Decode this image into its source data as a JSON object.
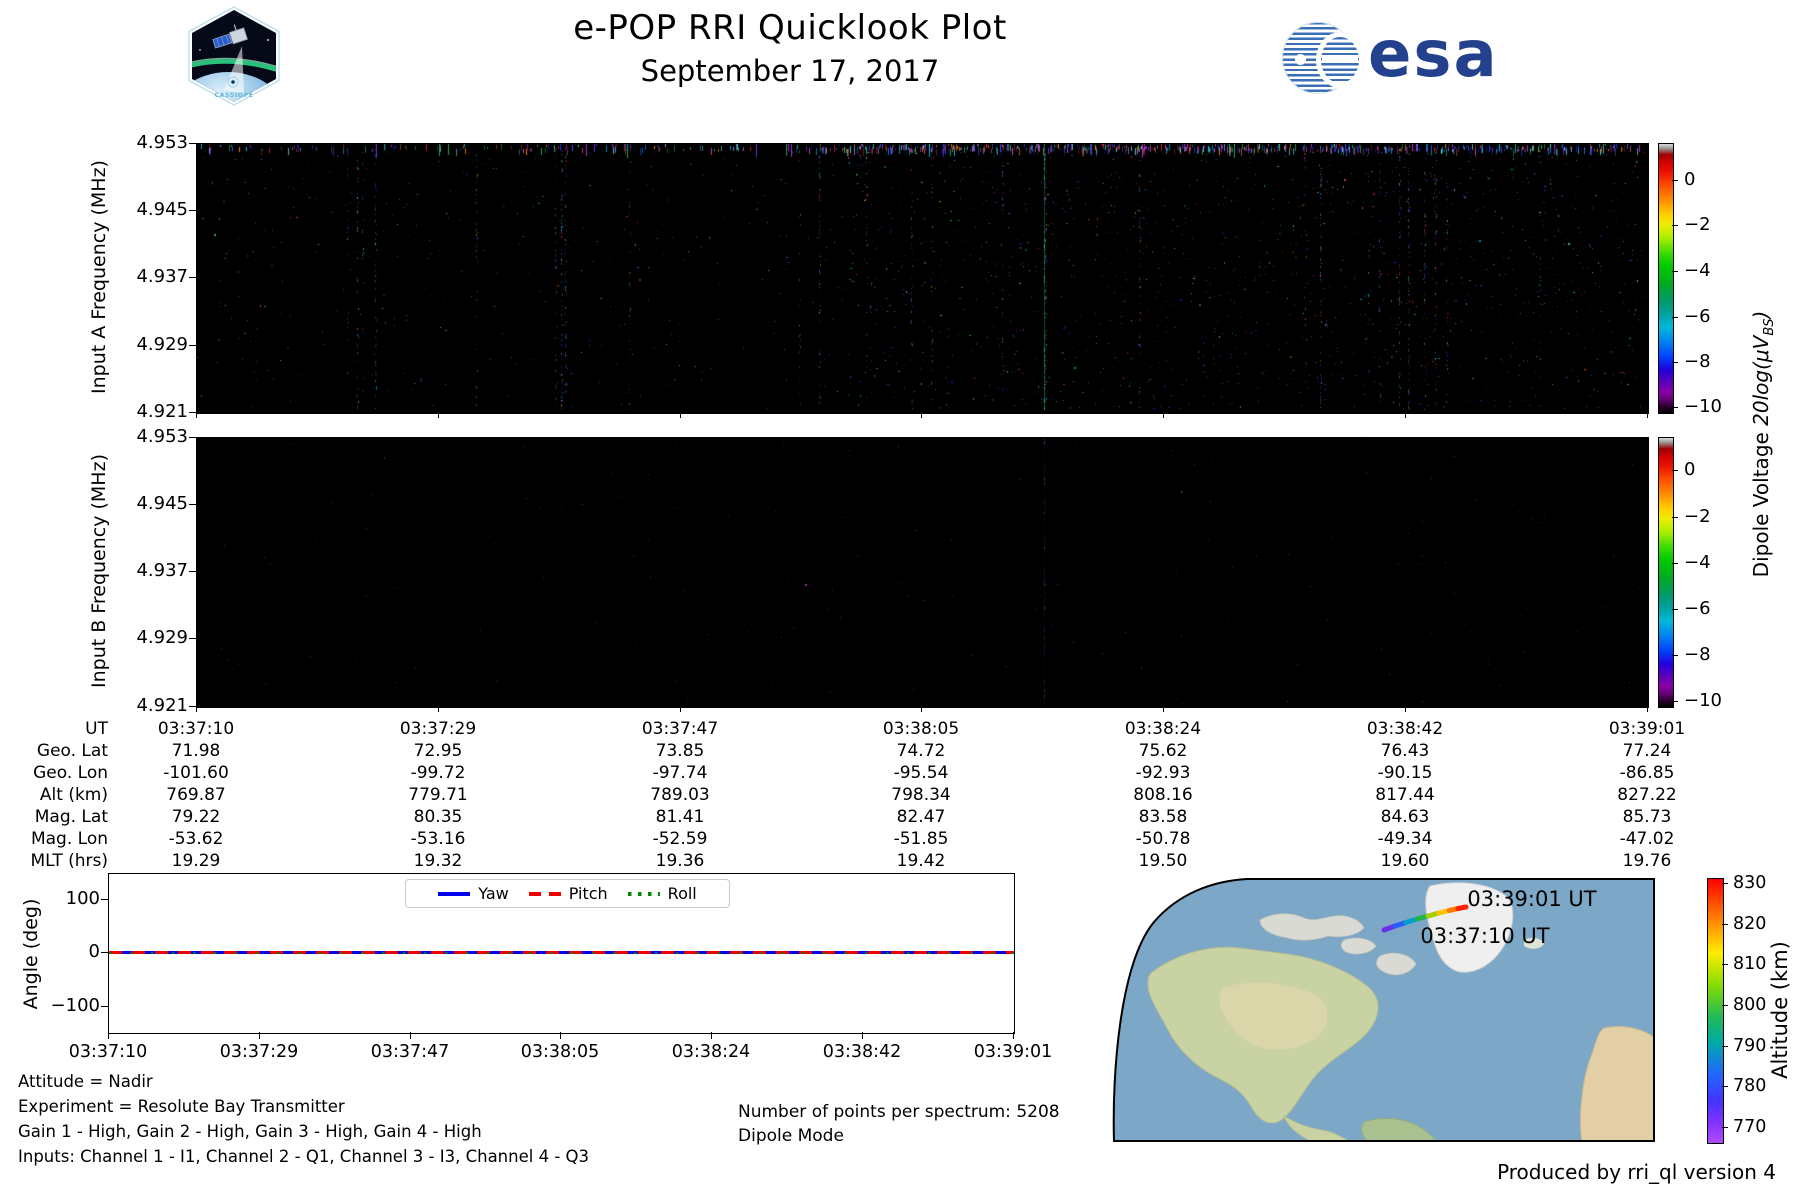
{
  "header": {
    "title": "e-POP RRI Quicklook Plot",
    "date": "September 17, 2017",
    "cassiope_label": "CASSIOPE",
    "esa_text": "esa"
  },
  "colors": {
    "esa_blue": "#24418e",
    "esa_stripe": "#3a6fb7",
    "ocean": "#7da7c6",
    "land": "#c9d2a3",
    "land_dry": "#ddd5ab",
    "arctic_land": "#d9dad3",
    "greenland": "#efefef",
    "yaw": "#0000ee",
    "pitch": "#ee0000",
    "roll": "#008800"
  },
  "spectrograms": {
    "panel_a_label": "Input A Frequency (MHz)",
    "panel_b_label": "Input B Frequency (MHz)",
    "freq_ticks": [
      "4.953",
      "4.945",
      "4.937",
      "4.929",
      "4.921"
    ],
    "colorbar_ticks": [
      "0",
      "−2",
      "−4",
      "−6",
      "−8",
      "−10"
    ],
    "colorbar_label_prefix": "Dipole Voltage ",
    "colorbar_label_math": "20log(μV",
    "colorbar_label_sub": "BS",
    "colorbar_label_close": ")"
  },
  "ephemeris_table": {
    "row_labels": [
      "UT",
      "Geo. Lat",
      "Geo. Lon",
      "Alt (km)",
      "Mag. Lat",
      "Mag. Lon",
      "MLT (hrs)"
    ],
    "columns": [
      [
        "03:37:10",
        "71.98",
        "-101.60",
        "769.87",
        "79.22",
        "-53.62",
        "19.29"
      ],
      [
        "03:37:29",
        "72.95",
        "-99.72",
        "779.71",
        "80.35",
        "-53.16",
        "19.32"
      ],
      [
        "03:37:47",
        "73.85",
        "-97.74",
        "789.03",
        "81.41",
        "-52.59",
        "19.36"
      ],
      [
        "03:38:05",
        "74.72",
        "-95.54",
        "798.34",
        "82.47",
        "-51.85",
        "19.42"
      ],
      [
        "03:38:24",
        "75.62",
        "-92.93",
        "808.16",
        "83.58",
        "-50.78",
        "19.50"
      ],
      [
        "03:38:42",
        "76.43",
        "-90.15",
        "817.44",
        "84.63",
        "-49.34",
        "19.60"
      ],
      [
        "03:39:01",
        "77.24",
        "-86.85",
        "827.22",
        "85.73",
        "-47.02",
        "19.76"
      ]
    ]
  },
  "angle_plot": {
    "ylabel": "Angle (deg)",
    "yticks": [
      "100",
      "0",
      "−100"
    ],
    "xticks": [
      "03:37:10",
      "03:37:29",
      "03:37:47",
      "03:38:05",
      "03:38:24",
      "03:38:42",
      "03:39:01"
    ],
    "legend": [
      {
        "label": "Yaw",
        "color": "#0000ee",
        "style": "solid"
      },
      {
        "label": "Pitch",
        "color": "#ee0000",
        "style": "dashed"
      },
      {
        "label": "Roll",
        "color": "#008800",
        "style": "dotted"
      }
    ]
  },
  "map": {
    "end_label": "03:39:01 UT",
    "start_label": "03:37:10 UT",
    "colorbar_label": "Altitude (km)",
    "colorbar_ticks": [
      "830",
      "820",
      "810",
      "800",
      "790",
      "780",
      "770"
    ]
  },
  "footer": {
    "attitude": "Attitude = Nadir",
    "experiment": "Experiment = Resolute Bay Transmitter",
    "gains": "Gain 1 - High, Gain 2 - High, Gain 3 - High, Gain 4 - High",
    "inputs": "Inputs: Channel 1 - I1, Channel 2 - Q1, Channel 3 - I3, Channel 4 - Q3",
    "points": "Number of points per spectrum: 5208",
    "mode": "Dipole Mode",
    "produced": "Produced by rri_ql version 4"
  },
  "chart_data": [
    {
      "type": "heatmap",
      "name": "input_a_spectrogram",
      "ylabel": "Input A Frequency (MHz)",
      "y_ticks": [
        4.953,
        4.945,
        4.937,
        4.929,
        4.921
      ],
      "ylim": [
        4.921,
        4.953
      ],
      "x_ticks": [
        "03:37:10",
        "03:37:29",
        "03:37:47",
        "03:38:05",
        "03:38:24",
        "03:38:42",
        "03:39:01"
      ],
      "value_colorbar": {
        "label": "Dipole Voltage 20log(μV_BS)",
        "ticks": [
          0,
          -2,
          -4,
          -6,
          -8,
          -10
        ],
        "range": [
          -10.3,
          1.6
        ],
        "colormap": "nipy_spectral-like (black/violet/blue/green/yellow/red/gray)"
      },
      "content": "Background at noise floor (black). Dense band of short colored vertical speckles along the very top edge (denser in right half); sparse blue/purple/cyan/magenta/green single-pixel specks scattered over the panel; faint vertical speck streaks at scattered times; one faint teal-green vertical line near 58% of the time axis.",
      "speckle": {
        "top_band_count": 760,
        "dot_count": 1650,
        "streak_count": 28,
        "teal_streak_x_frac": 0.585,
        "palette": [
          "#2233ee",
          "#4455ff",
          "#00bbee",
          "#7733ee",
          "#cc33cc",
          "#ee44aa",
          "#22bb66",
          "#66ddcc",
          "#8899ff",
          "#cc2222",
          "#ff8800"
        ]
      }
    },
    {
      "type": "heatmap",
      "name": "input_b_spectrogram",
      "ylabel": "Input B Frequency (MHz)",
      "y_ticks": [
        4.953,
        4.945,
        4.937,
        4.929,
        4.921
      ],
      "ylim": [
        4.921,
        4.953
      ],
      "x_ticks": [
        "03:37:10",
        "03:37:29",
        "03:37:47",
        "03:38:05",
        "03:38:24",
        "03:38:42",
        "03:39:01"
      ],
      "value_colorbar": {
        "label": "Dipole Voltage 20log(μV_BS)",
        "ticks": [
          0,
          -2,
          -4,
          -6,
          -8,
          -10
        ],
        "range": [
          -10.3,
          1.6
        ],
        "colormap": "nipy_spectral-like"
      },
      "content": "Almost entirely black; very sparse faint specks and one barely visible vertical streak near 58% of the time axis.",
      "speckle": {
        "dot_count": 280,
        "streak_x_frac": 0.585,
        "palette": [
          "#2233ee",
          "#7733ee",
          "#cc33cc",
          "#00bbee",
          "#22bb66"
        ]
      }
    },
    {
      "type": "line",
      "name": "attitude_angles",
      "title": "",
      "ylabel": "Angle (deg)",
      "ylim": [
        -150,
        150
      ],
      "y_ticks": [
        100,
        0,
        -100
      ],
      "x_ticks": [
        "03:37:10",
        "03:37:29",
        "03:37:47",
        "03:38:05",
        "03:38:24",
        "03:38:42",
        "03:39:01"
      ],
      "legend_position": "upper center",
      "series": [
        {
          "name": "Yaw",
          "style": "solid",
          "color": "#0000ee",
          "values_desc": "constant ≈ 0 deg for whole interval"
        },
        {
          "name": "Pitch",
          "style": "dashed",
          "color": "#ee0000",
          "values_desc": "constant ≈ 0 deg for whole interval"
        },
        {
          "name": "Roll",
          "style": "dotted",
          "color": "#008800",
          "values_desc": "constant ≈ 0 deg for whole interval"
        }
      ]
    },
    {
      "type": "table",
      "name": "ephemeris",
      "row_labels": [
        "UT",
        "Geo. Lat",
        "Geo. Lon",
        "Alt (km)",
        "Mag. Lat",
        "Mag. Lon",
        "MLT (hrs)"
      ],
      "columns": [
        [
          "03:37:10",
          "71.98",
          "-101.60",
          "769.87",
          "79.22",
          "-53.62",
          "19.29"
        ],
        [
          "03:37:29",
          "72.95",
          "-99.72",
          "779.71",
          "80.35",
          "-53.16",
          "19.32"
        ],
        [
          "03:37:47",
          "73.85",
          "-97.74",
          "789.03",
          "81.41",
          "-52.59",
          "19.36"
        ],
        [
          "03:38:05",
          "74.72",
          "-95.54",
          "798.34",
          "82.47",
          "-51.85",
          "19.42"
        ],
        [
          "03:38:24",
          "75.62",
          "-92.93",
          "808.16",
          "83.58",
          "-50.78",
          "19.50"
        ],
        [
          "03:38:42",
          "76.43",
          "-90.15",
          "817.44",
          "84.63",
          "-49.34",
          "19.60"
        ],
        [
          "03:39:01",
          "77.24",
          "-86.85",
          "827.22",
          "85.73",
          "-47.02",
          "19.76"
        ]
      ]
    },
    {
      "type": "map",
      "name": "ground_track",
      "region": "North America / Canadian Arctic, curved-boundary projection",
      "track": {
        "start_label": "03:37:10 UT",
        "end_label": "03:39:01 UT",
        "color_progression": [
          "#6a2fe8",
          "#2b5cff",
          "#00a0c8",
          "#22b24c",
          "#a8cc00",
          "#ffc400",
          "#ff7a00",
          "#ff2200"
        ]
      },
      "colorbar": {
        "label": "Altitude (km)",
        "ticks": [
          830,
          820,
          810,
          800,
          790,
          780,
          770
        ],
        "range": [
          763,
          831
        ],
        "colormap": "rainbow (red top to violet bottom)"
      }
    }
  ]
}
